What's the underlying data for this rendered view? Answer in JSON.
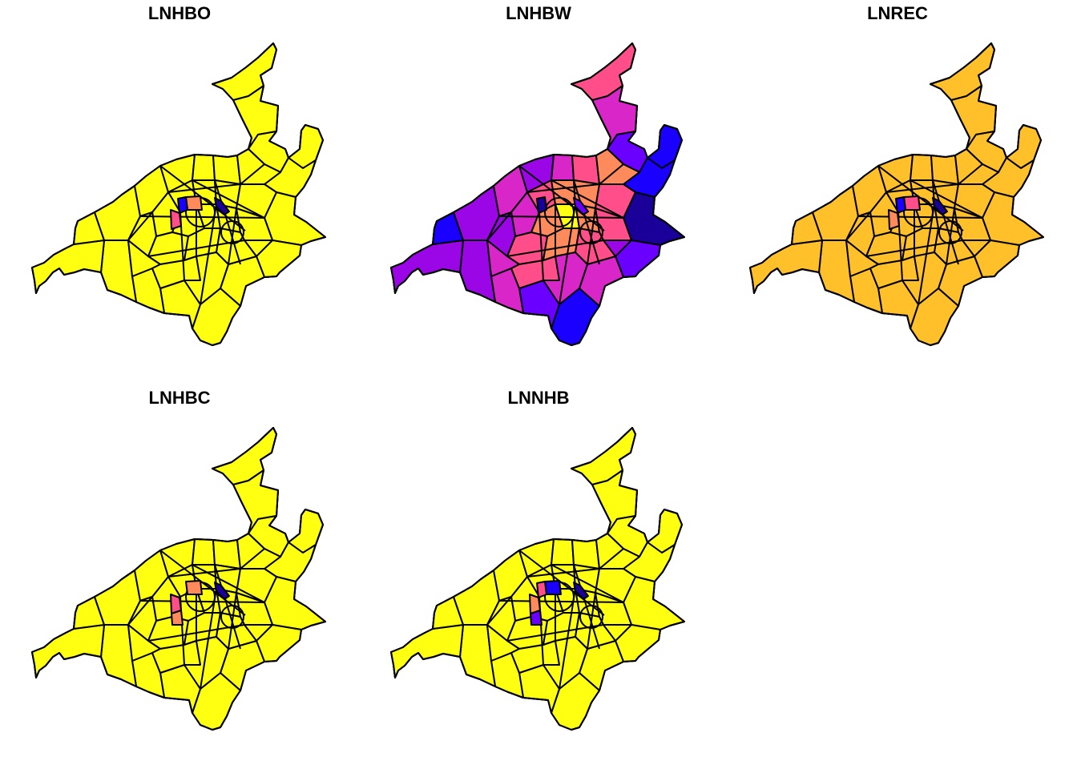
{
  "panels": [
    {
      "title": "LNHBO",
      "palette": "yellow"
    },
    {
      "title": "LNHBW",
      "palette": "purple"
    },
    {
      "title": "LNREC",
      "palette": "orange"
    },
    {
      "title": "LNHBC",
      "palette": "yellow"
    },
    {
      "title": "LNNHB",
      "palette": "yellow"
    }
  ],
  "colors": {
    "yellow": "#FFFF12",
    "orange": "#FFC02A",
    "salmon": "#FF8A5C",
    "pink": "#FF4E8A",
    "magenta": "#D826C8",
    "purple": "#9B06E6",
    "violet": "#6A00FF",
    "blue": "#1A00FF",
    "navy": "#1A0099"
  }
}
